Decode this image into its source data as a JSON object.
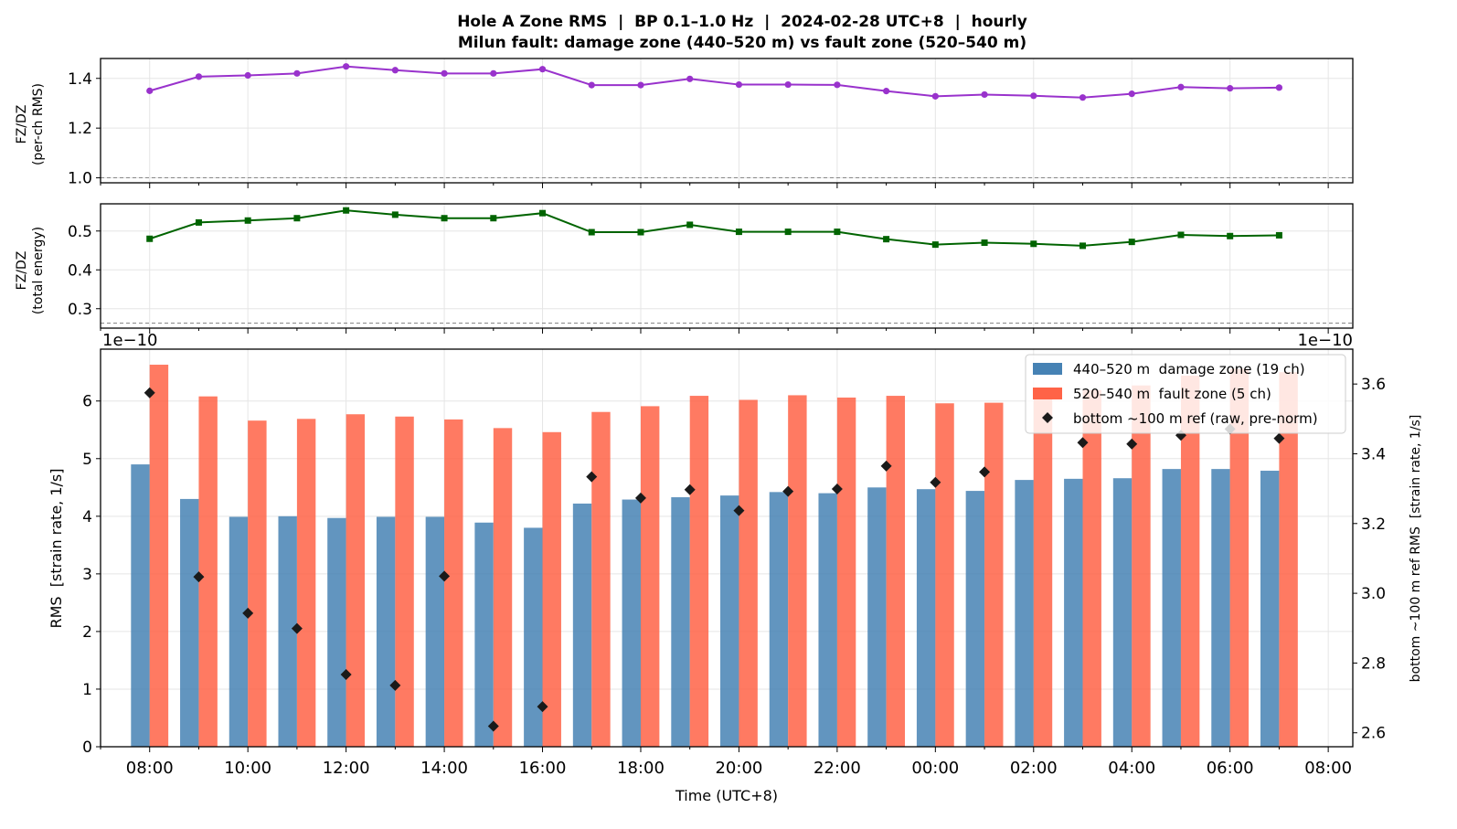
{
  "title_line1": "Hole A Zone RMS  |  BP 0.1–1.0 Hz  |  2024-02-28 UTC+8  |  hourly",
  "title_line2": "Milun fault: damage zone (440–520 m) vs fault zone (520–540 m)",
  "colors": {
    "ratio_rms": "#9932CC",
    "ratio_energy": "#006400",
    "damage_zone": "#4682B4",
    "fault_zone": "#FF6347",
    "bottom_ref": "#1a1a1a",
    "grid": "#e5e5e5",
    "ref_line": "#888888"
  },
  "chart_data": [
    {
      "type": "line",
      "name": "ratio_rms",
      "ylabel_line1": "FZ/DZ",
      "ylabel_line2": "(per-ch RMS)",
      "ylim": [
        0.98,
        1.48
      ],
      "yticks": [
        1.0,
        1.2,
        1.4
      ],
      "reference_line": 1.0,
      "marker": "circle",
      "grid": true,
      "x_hours": [
        0,
        1,
        2,
        3,
        4,
        5,
        6,
        7,
        8,
        9,
        10,
        11,
        12,
        13,
        14,
        15,
        16,
        17,
        18,
        19,
        20,
        21,
        22,
        23
      ],
      "values": [
        1.35,
        1.407,
        1.412,
        1.42,
        1.448,
        1.433,
        1.42,
        1.42,
        1.437,
        1.373,
        1.373,
        1.398,
        1.375,
        1.375,
        1.374,
        1.349,
        1.328,
        1.335,
        1.33,
        1.323,
        1.338,
        1.365,
        1.36,
        1.363
      ]
    },
    {
      "type": "line",
      "name": "ratio_energy",
      "ylabel_line1": "FZ/DZ",
      "ylabel_line2": "(total energy)",
      "ylim": [
        0.25,
        0.57
      ],
      "yticks": [
        0.3,
        0.4,
        0.5
      ],
      "reference_line": 0.263,
      "marker": "square",
      "grid": true,
      "x_hours": [
        0,
        1,
        2,
        3,
        4,
        5,
        6,
        7,
        8,
        9,
        10,
        11,
        12,
        13,
        14,
        15,
        16,
        17,
        18,
        19,
        20,
        21,
        22,
        23
      ],
      "values": [
        0.48,
        0.522,
        0.527,
        0.533,
        0.553,
        0.542,
        0.533,
        0.533,
        0.546,
        0.497,
        0.497,
        0.516,
        0.498,
        0.498,
        0.498,
        0.479,
        0.465,
        0.47,
        0.467,
        0.462,
        0.472,
        0.49,
        0.487,
        0.489
      ]
    },
    {
      "type": "bar",
      "name": "zone_rms",
      "xlabel": "Time (UTC+8)",
      "ylabel": "RMS  [strain rate, 1/s]",
      "y2label": "bottom ~100 m ref RMS  [strain rate, 1/s]",
      "offset_text_left": "1e−10",
      "offset_text_right": "1e−10",
      "ylim": [
        0,
        6.9
      ],
      "yticks": [
        0,
        1,
        2,
        3,
        4,
        5,
        6
      ],
      "y2lim": [
        2.56,
        3.7
      ],
      "y2ticks": [
        2.6,
        2.8,
        3.0,
        3.2,
        3.4,
        3.6
      ],
      "xlim_hours": [
        -1,
        24.5
      ],
      "xtick_hours": [
        0,
        2,
        4,
        6,
        8,
        10,
        12,
        14,
        16,
        18,
        20,
        22,
        24
      ],
      "xtick_labels": [
        "08:00",
        "10:00",
        "12:00",
        "14:00",
        "16:00",
        "18:00",
        "20:00",
        "22:00",
        "00:00",
        "02:00",
        "04:00",
        "06:00",
        "08:00"
      ],
      "grid": true,
      "legend_position": "top-right",
      "x_hours": [
        0,
        1,
        2,
        3,
        4,
        5,
        6,
        7,
        8,
        9,
        10,
        11,
        12,
        13,
        14,
        15,
        16,
        17,
        18,
        19,
        20,
        21,
        22,
        23
      ],
      "series": [
        {
          "name": "440–520 m  damage zone (19 ch)",
          "axis": "left",
          "values": [
            4.9,
            4.3,
            3.99,
            4.0,
            3.97,
            3.99,
            3.99,
            3.89,
            3.8,
            4.22,
            4.29,
            4.33,
            4.36,
            4.42,
            4.4,
            4.5,
            4.47,
            4.44,
            4.63,
            4.65,
            4.66,
            4.82,
            4.82,
            4.79
          ]
        },
        {
          "name": "520–540 m  fault zone (5 ch)",
          "axis": "left",
          "values": [
            6.63,
            6.08,
            5.66,
            5.69,
            5.77,
            5.73,
            5.68,
            5.53,
            5.46,
            5.81,
            5.91,
            6.09,
            6.02,
            6.1,
            6.06,
            6.09,
            5.96,
            5.97,
            6.1,
            6.19,
            6.27,
            6.44,
            6.56,
            6.5
          ]
        },
        {
          "name": "bottom ~100 m ref (raw, pre-norm)",
          "axis": "right",
          "marker": "diamond",
          "values": [
            3.575,
            3.047,
            2.943,
            2.899,
            2.767,
            2.736,
            3.049,
            2.619,
            2.675,
            3.334,
            3.273,
            3.297,
            3.237,
            3.292,
            3.299,
            3.365,
            3.318,
            3.348,
            null,
            3.432,
            3.428,
            3.453,
            3.471,
            3.444
          ]
        }
      ]
    }
  ]
}
